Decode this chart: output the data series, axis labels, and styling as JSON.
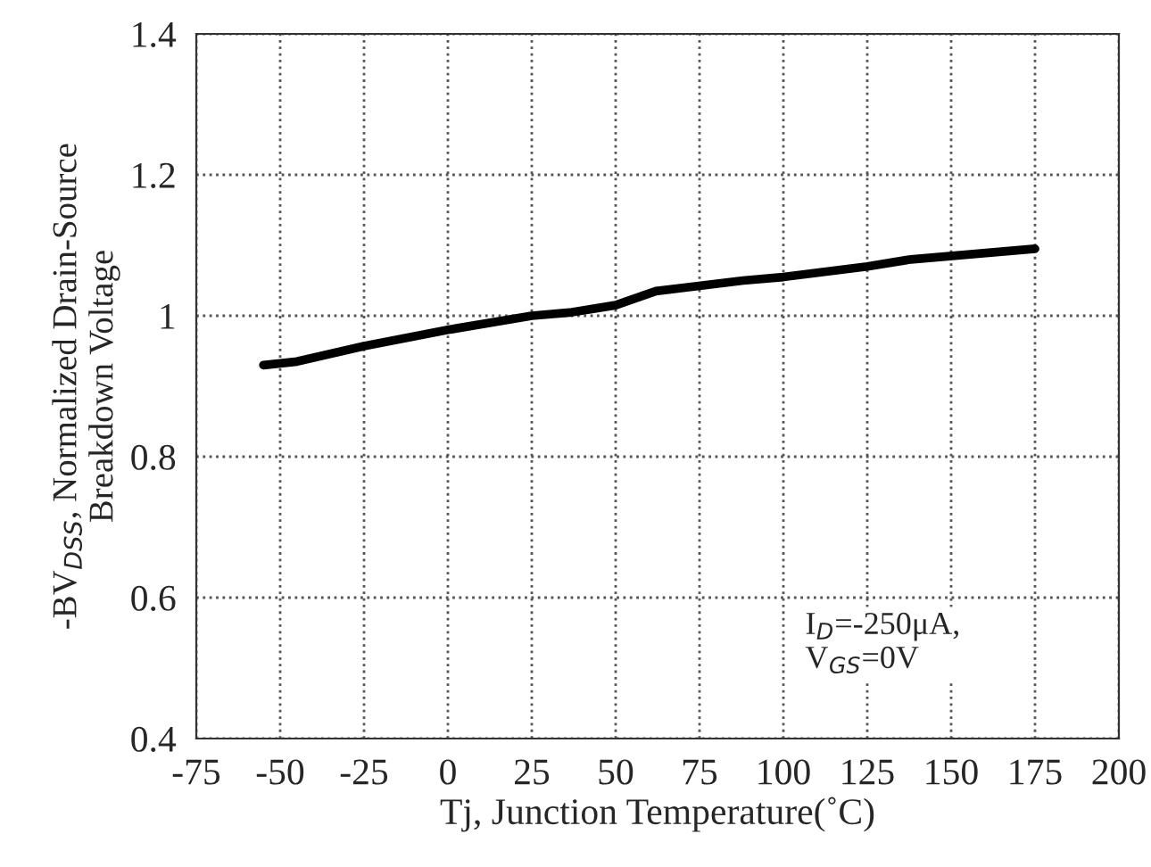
{
  "chart_data": {
    "type": "line",
    "xlabel": "Tj, Junction Temperature(˚C)",
    "ylabel": "-BV$_{DSS}$, Normalized Drain-Source\nBreakdown Voltage",
    "annotations": [
      "I$_{D}$=-250μA,\nV$_{GS}$=0V"
    ],
    "x": [
      -55,
      -45,
      -25,
      0,
      25,
      37,
      50,
      62,
      88,
      100,
      125,
      138,
      175
    ],
    "series": [
      {
        "color": "#000000",
        "values": [
          0.93,
          0.935,
          0.957,
          0.98,
          1.0,
          1.005,
          1.015,
          1.035,
          1.05,
          1.055,
          1.07,
          1.08,
          1.095
        ]
      }
    ],
    "xlim": [
      -75,
      200
    ],
    "xticks": [
      -75,
      -50,
      -25,
      0,
      25,
      50,
      75,
      100,
      125,
      150,
      175,
      200
    ],
    "ylim": [
      0.4,
      1.4
    ],
    "yticks": [
      0.4,
      0.6,
      0.8,
      1,
      1.2,
      1.4
    ],
    "grid": true,
    "marker": "none",
    "line_style": "solid"
  }
}
